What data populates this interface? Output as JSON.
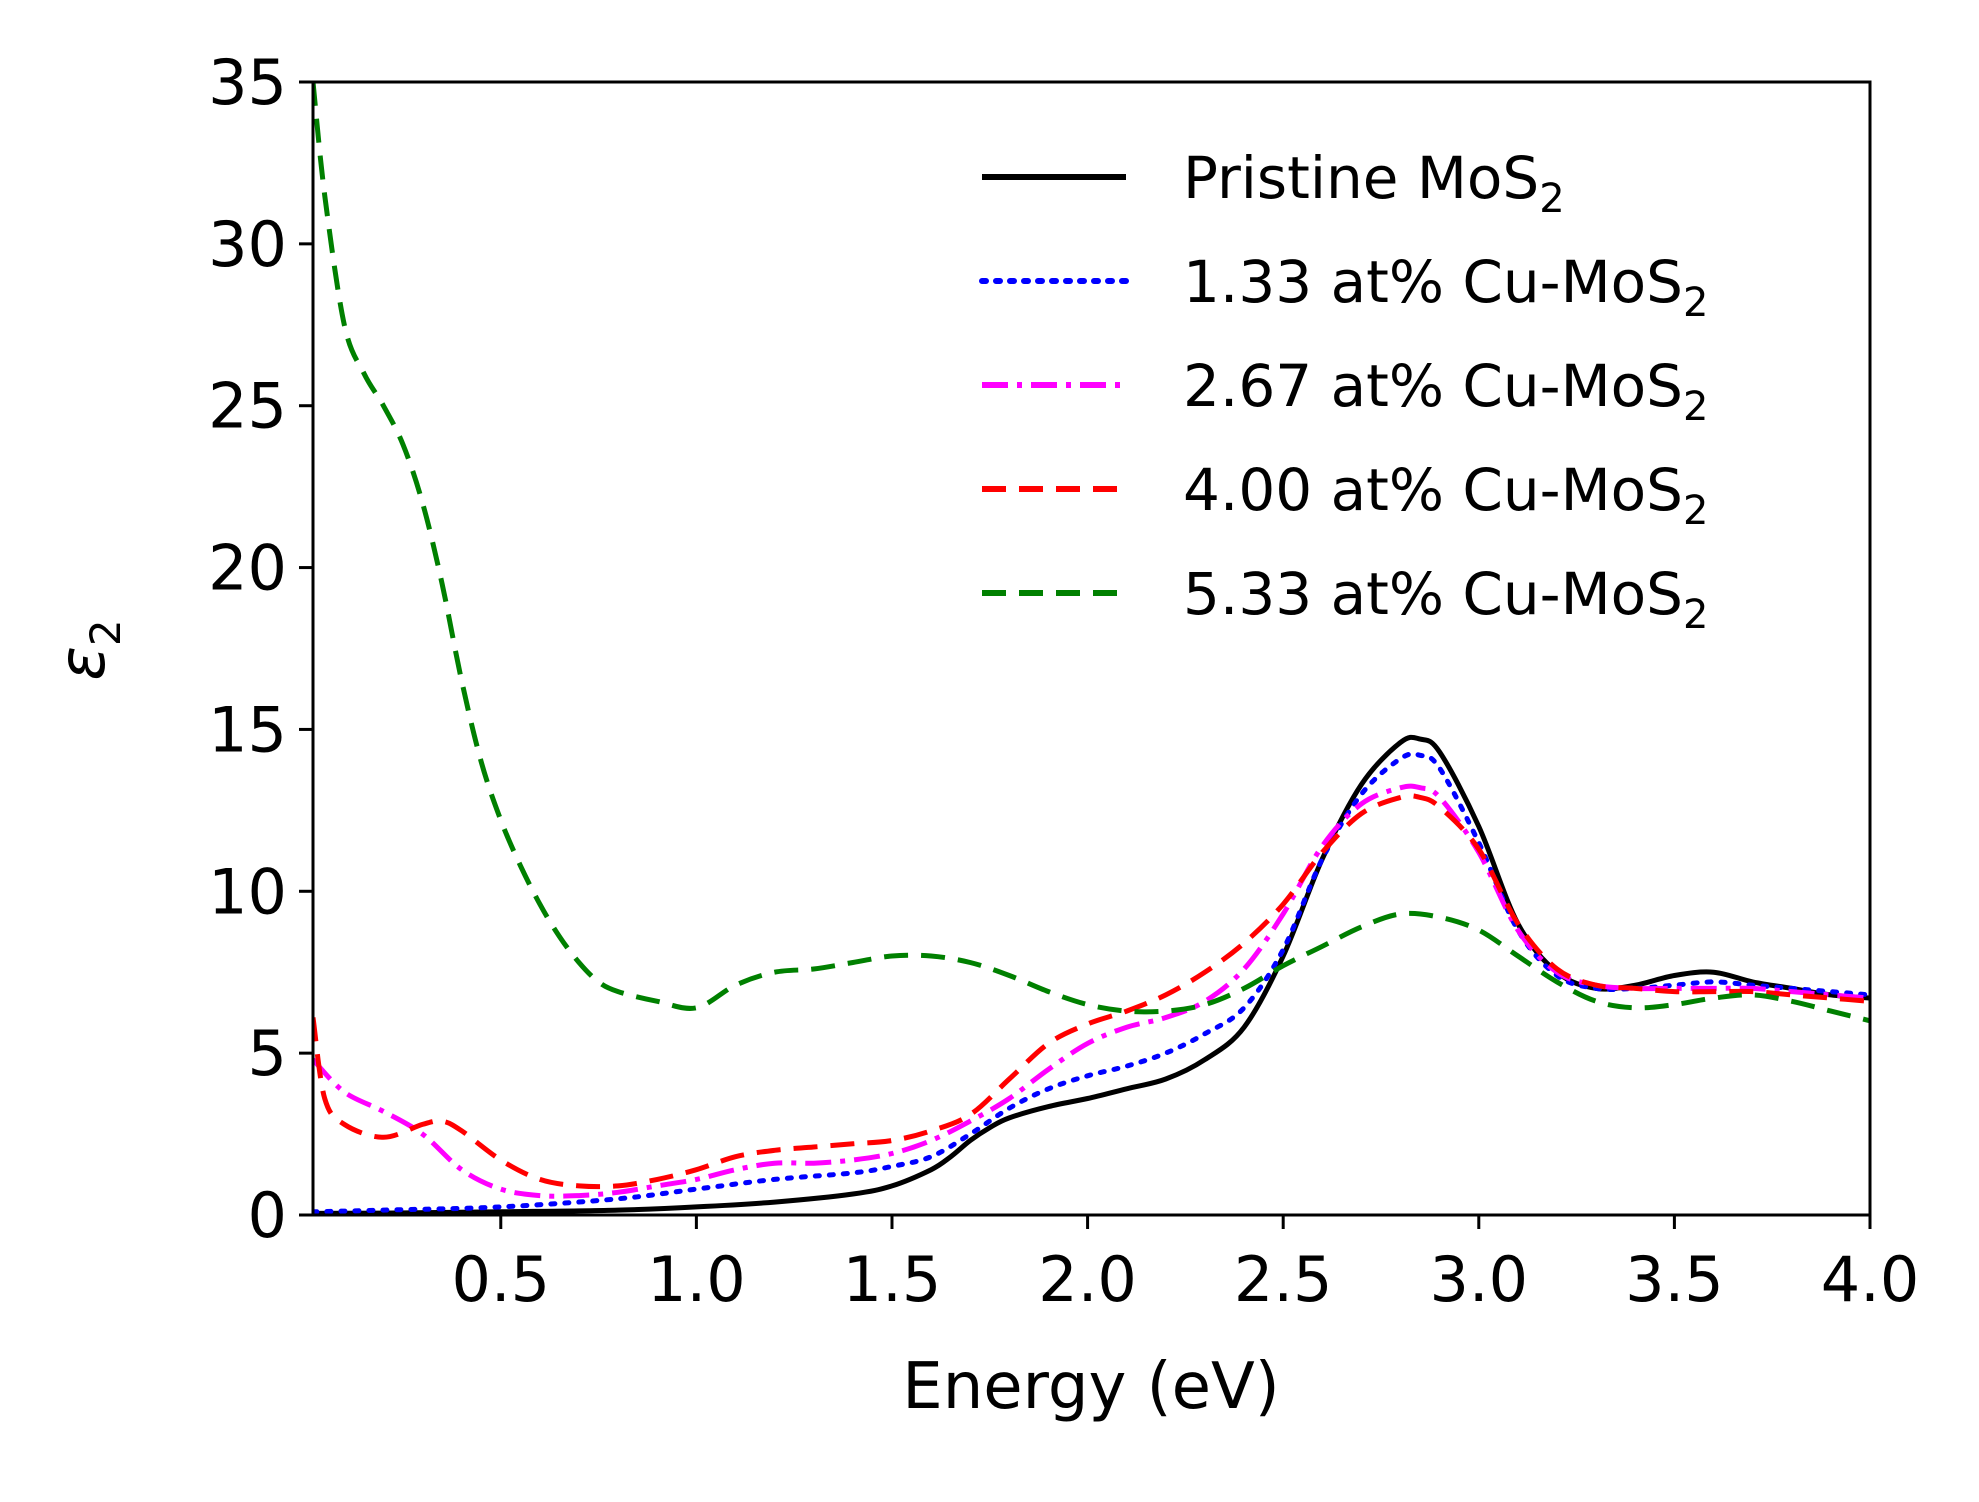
{
  "chart_data": {
    "type": "line",
    "xlabel": "Energy (eV)",
    "ylabel": "ε",
    "ylabel_subscript": "2",
    "xlim": [
      0.02,
      4.0
    ],
    "ylim": [
      0,
      35
    ],
    "xticks": [
      0.5,
      1.0,
      1.5,
      2.0,
      2.5,
      3.0,
      3.5,
      4.0
    ],
    "xtick_labels": [
      "0.5",
      "1.0",
      "1.5",
      "2.0",
      "2.5",
      "3.0",
      "3.5",
      "4.0"
    ],
    "yticks": [
      0,
      5,
      10,
      15,
      20,
      25,
      30,
      35
    ],
    "ytick_labels": [
      "0",
      "5",
      "10",
      "15",
      "20",
      "25",
      "30",
      "35"
    ],
    "grid": false,
    "legend_position": "top-right",
    "series": [
      {
        "name": "Pristine MoS",
        "name_subscript": "2",
        "color": "#000000",
        "dash": "solid",
        "x": [
          0.02,
          0.2,
          0.5,
          0.8,
          1.0,
          1.2,
          1.4,
          1.5,
          1.6,
          1.65,
          1.7,
          1.75,
          1.8,
          1.9,
          2.0,
          2.1,
          2.2,
          2.3,
          2.4,
          2.5,
          2.6,
          2.7,
          2.8,
          2.85,
          2.9,
          3.0,
          3.1,
          3.2,
          3.3,
          3.4,
          3.5,
          3.6,
          3.7,
          3.8,
          3.9,
          4.0
        ],
        "y": [
          0.05,
          0.06,
          0.1,
          0.15,
          0.25,
          0.4,
          0.65,
          0.9,
          1.4,
          1.8,
          2.3,
          2.7,
          3.0,
          3.35,
          3.6,
          3.9,
          4.2,
          4.8,
          5.8,
          8.0,
          11.0,
          13.3,
          14.6,
          14.7,
          14.3,
          12.0,
          9.0,
          7.5,
          7.0,
          7.1,
          7.4,
          7.5,
          7.2,
          7.0,
          6.8,
          6.7
        ]
      },
      {
        "name": "1.33 at% Cu-MoS",
        "name_subscript": "2",
        "color": "#0000ff",
        "dash": "dotted",
        "x": [
          0.02,
          0.2,
          0.5,
          0.8,
          1.0,
          1.2,
          1.4,
          1.5,
          1.6,
          1.7,
          1.8,
          1.9,
          2.0,
          2.1,
          2.2,
          2.3,
          2.4,
          2.5,
          2.6,
          2.7,
          2.8,
          2.85,
          2.9,
          3.0,
          3.1,
          3.2,
          3.3,
          3.4,
          3.5,
          3.6,
          3.7,
          3.8,
          3.9,
          4.0
        ],
        "y": [
          0.1,
          0.15,
          0.25,
          0.5,
          0.8,
          1.1,
          1.3,
          1.5,
          1.8,
          2.5,
          3.3,
          3.9,
          4.3,
          4.6,
          5.0,
          5.6,
          6.4,
          8.2,
          11.0,
          13.0,
          14.1,
          14.2,
          13.8,
          11.5,
          8.8,
          7.4,
          7.0,
          7.0,
          7.1,
          7.2,
          7.1,
          7.0,
          6.9,
          6.8
        ]
      },
      {
        "name": "2.67 at% Cu-MoS",
        "name_subscript": "2",
        "color": "#ff00ff",
        "dash": "dashdot",
        "x": [
          0.02,
          0.1,
          0.2,
          0.3,
          0.4,
          0.5,
          0.6,
          0.7,
          0.8,
          0.9,
          1.0,
          1.1,
          1.2,
          1.3,
          1.4,
          1.5,
          1.6,
          1.7,
          1.8,
          1.9,
          2.0,
          2.1,
          2.2,
          2.3,
          2.4,
          2.5,
          2.6,
          2.7,
          2.8,
          2.85,
          2.9,
          3.0,
          3.1,
          3.2,
          3.3,
          3.4,
          3.5,
          3.6,
          3.7,
          3.8,
          3.9,
          4.0
        ],
        "y": [
          4.8,
          3.8,
          3.2,
          2.5,
          1.4,
          0.8,
          0.6,
          0.6,
          0.7,
          0.9,
          1.1,
          1.4,
          1.6,
          1.6,
          1.7,
          1.9,
          2.3,
          2.9,
          3.6,
          4.5,
          5.3,
          5.8,
          6.1,
          6.6,
          7.6,
          9.3,
          11.4,
          12.7,
          13.2,
          13.2,
          12.9,
          11.2,
          8.8,
          7.5,
          7.1,
          7.0,
          7.0,
          7.0,
          7.0,
          6.9,
          6.8,
          6.7
        ]
      },
      {
        "name": "4.00 at% Cu-MoS",
        "name_subscript": "2",
        "color": "#ff0000",
        "dash": "dashed",
        "x": [
          0.02,
          0.05,
          0.1,
          0.2,
          0.3,
          0.35,
          0.4,
          0.5,
          0.6,
          0.7,
          0.8,
          0.9,
          1.0,
          1.1,
          1.2,
          1.3,
          1.4,
          1.5,
          1.6,
          1.7,
          1.8,
          1.9,
          2.0,
          2.1,
          2.2,
          2.3,
          2.4,
          2.5,
          2.6,
          2.7,
          2.8,
          2.85,
          2.9,
          3.0,
          3.1,
          3.2,
          3.3,
          3.4,
          3.5,
          3.6,
          3.7,
          3.8,
          3.9,
          4.0
        ],
        "y": [
          6.1,
          3.6,
          2.8,
          2.4,
          2.8,
          2.9,
          2.6,
          1.7,
          1.1,
          0.9,
          0.9,
          1.1,
          1.4,
          1.8,
          2.0,
          2.1,
          2.2,
          2.3,
          2.6,
          3.1,
          4.2,
          5.3,
          5.9,
          6.3,
          6.8,
          7.5,
          8.4,
          9.6,
          11.2,
          12.4,
          12.9,
          12.9,
          12.6,
          11.3,
          9.0,
          7.6,
          7.1,
          7.0,
          6.9,
          6.9,
          6.9,
          6.8,
          6.7,
          6.6
        ]
      },
      {
        "name": "5.33 at% Cu-MoS",
        "name_subscript": "2",
        "color": "#008000",
        "dash": "dashed",
        "x": [
          0.02,
          0.05,
          0.1,
          0.15,
          0.2,
          0.25,
          0.3,
          0.35,
          0.4,
          0.45,
          0.5,
          0.55,
          0.6,
          0.65,
          0.7,
          0.75,
          0.8,
          0.9,
          1.0,
          1.1,
          1.2,
          1.3,
          1.4,
          1.5,
          1.6,
          1.7,
          1.8,
          1.9,
          2.0,
          2.1,
          2.2,
          2.3,
          2.4,
          2.5,
          2.6,
          2.7,
          2.8,
          2.9,
          3.0,
          3.1,
          3.2,
          3.3,
          3.4,
          3.5,
          3.6,
          3.7,
          3.8,
          3.9,
          4.0
        ],
        "y": [
          35.0,
          31.5,
          27.5,
          26.0,
          25.0,
          23.8,
          22.0,
          19.5,
          16.5,
          14.0,
          12.2,
          10.8,
          9.6,
          8.6,
          7.8,
          7.2,
          6.9,
          6.6,
          6.4,
          7.1,
          7.5,
          7.6,
          7.8,
          8.0,
          8.0,
          7.8,
          7.4,
          6.9,
          6.5,
          6.3,
          6.3,
          6.5,
          7.0,
          7.7,
          8.3,
          8.9,
          9.3,
          9.2,
          8.8,
          8.0,
          7.2,
          6.6,
          6.4,
          6.5,
          6.7,
          6.8,
          6.6,
          6.3,
          6.0
        ]
      }
    ]
  }
}
